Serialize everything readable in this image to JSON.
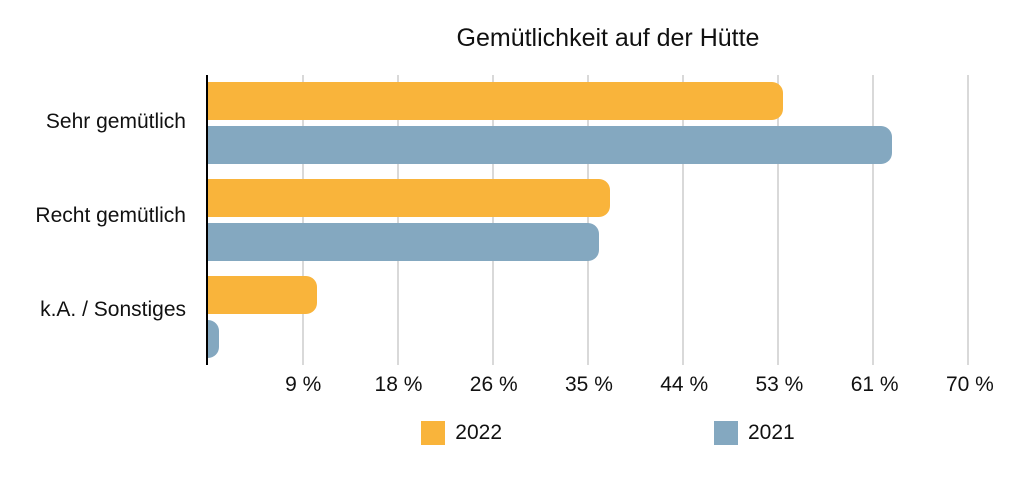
{
  "chart_data": {
    "type": "bar",
    "orientation": "horizontal",
    "title": "Gemütlichkeit auf der Hütte",
    "categories": [
      "Sehr gemütlich",
      "Recht gemütlich",
      "k.A. / Sonstiges"
    ],
    "series": [
      {
        "name": "2022",
        "color": "#F9B43B",
        "values": [
          53,
          37,
          10
        ]
      },
      {
        "name": "2021",
        "color": "#84A8C0",
        "values": [
          63,
          36,
          1
        ]
      }
    ],
    "unit": "%",
    "xlim": [
      0,
      73.5
    ],
    "x_ticks": [
      {
        "value": 8.75,
        "label": "9 %"
      },
      {
        "value": 17.5,
        "label": "18 %"
      },
      {
        "value": 26.25,
        "label": "26 %"
      },
      {
        "value": 35,
        "label": "35 %"
      },
      {
        "value": 43.75,
        "label": "44 %"
      },
      {
        "value": 52.5,
        "label": "53 %"
      },
      {
        "value": 61.25,
        "label": "61 %"
      },
      {
        "value": 70,
        "label": "70 %"
      }
    ],
    "grid": true,
    "legend_position": "bottom",
    "colors": {
      "gridline": "#D9D9D9",
      "axis": "#000000",
      "text": "#111111"
    }
  }
}
